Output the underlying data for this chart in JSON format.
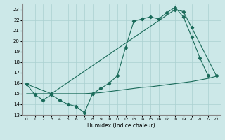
{
  "xlabel": "Humidex (Indice chaleur)",
  "xlim": [
    -0.5,
    23.5
  ],
  "ylim": [
    13,
    23.5
  ],
  "yticks": [
    13,
    14,
    15,
    16,
    17,
    18,
    19,
    20,
    21,
    22,
    23
  ],
  "xticks": [
    0,
    1,
    2,
    3,
    4,
    5,
    6,
    7,
    8,
    9,
    10,
    11,
    12,
    13,
    14,
    15,
    16,
    17,
    18,
    19,
    20,
    21,
    22,
    23
  ],
  "bg_color": "#cce8e8",
  "grid_color": "#aad0d0",
  "line_color": "#1a6b5a",
  "line1_x": [
    0,
    1,
    2,
    3,
    4,
    5,
    6,
    7,
    8,
    9,
    10,
    11,
    12,
    13,
    14,
    15,
    16,
    17,
    18,
    19,
    20,
    21,
    22
  ],
  "line1_y": [
    15.9,
    14.9,
    14.4,
    14.9,
    14.4,
    14.0,
    13.8,
    13.2,
    15.0,
    15.5,
    16.0,
    16.7,
    19.4,
    21.9,
    22.1,
    22.3,
    22.1,
    22.7,
    23.2,
    22.3,
    20.4,
    18.4,
    16.7
  ],
  "line2_x": [
    0,
    3,
    18,
    19,
    20,
    23
  ],
  "line2_y": [
    15.9,
    15.0,
    23.0,
    22.8,
    21.3,
    16.7
  ],
  "line3_x": [
    0,
    1,
    2,
    3,
    4,
    5,
    6,
    7,
    8,
    9,
    10,
    11,
    12,
    13,
    14,
    15,
    16,
    17,
    18,
    19,
    20,
    21,
    22,
    23
  ],
  "line3_y": [
    15.0,
    15.0,
    15.0,
    15.0,
    15.0,
    15.0,
    15.0,
    15.0,
    15.05,
    15.1,
    15.2,
    15.3,
    15.4,
    15.5,
    15.6,
    15.65,
    15.75,
    15.85,
    15.95,
    16.05,
    16.15,
    16.3,
    16.45,
    16.65
  ]
}
